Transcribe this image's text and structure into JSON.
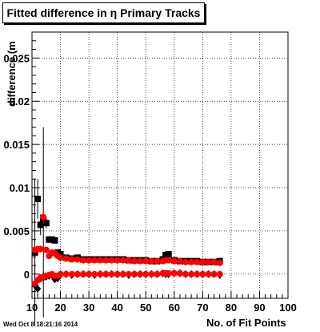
{
  "chart_data": {
    "type": "scatter",
    "title": "Fitted difference in  η Primary Tracks",
    "xlabel": "No. of Fit Points",
    "ylabel": "difference (m",
    "xlim": [
      10,
      100
    ],
    "ylim": [
      -0.0028,
      0.028
    ],
    "xticks": [
      10,
      20,
      30,
      40,
      50,
      60,
      70,
      80,
      90,
      100
    ],
    "yticks": [
      "0",
      "0.005",
      "0.01",
      "0.015",
      "0.02",
      "0.025"
    ],
    "ytick_values": [
      0,
      0.005,
      0.01,
      0.015,
      0.02,
      0.025
    ],
    "grid": true,
    "series": [
      {
        "marker": "square",
        "color": "#000000",
        "x": [
          11,
          12,
          13,
          14,
          15,
          16,
          17,
          18,
          19,
          20,
          22,
          24,
          26,
          28,
          30,
          32,
          34,
          36,
          38,
          40,
          42,
          44,
          46,
          48,
          50,
          52,
          54,
          56,
          57,
          58,
          60,
          62,
          64,
          66,
          68,
          70,
          72,
          74,
          76
        ],
        "y": [
          0.0025,
          0.0087,
          0.0057,
          0.006,
          0.0059,
          0.004,
          0.004,
          0.0039,
          0.0025,
          0.0023,
          0.0019,
          0.0018,
          0.0019,
          0.0017,
          0.0017,
          0.0017,
          0.0017,
          0.0017,
          0.0017,
          0.0017,
          0.0017,
          0.0016,
          0.0016,
          0.0016,
          0.0016,
          0.0015,
          0.0015,
          0.0017,
          0.0022,
          0.0023,
          0.0016,
          0.0015,
          0.0015,
          0.0015,
          0.0015,
          0.0014,
          0.0014,
          0.0014,
          0.0015
        ],
        "err": [
          0.0085,
          0.0023,
          0.0012,
          0.011,
          0.0006,
          0.0003,
          0.0003,
          0.0002,
          0.0002,
          0.0001,
          0,
          0,
          0,
          0,
          0,
          0,
          0,
          0,
          0,
          0,
          0,
          0,
          0,
          0,
          0,
          0,
          0,
          0,
          0,
          0,
          0,
          0,
          0,
          0,
          0,
          0,
          0,
          0,
          0
        ]
      },
      {
        "marker": "circle",
        "color": "#ff0000",
        "x": [
          11,
          12,
          13,
          14,
          15,
          16,
          17,
          18,
          19,
          20,
          22,
          24,
          26,
          28,
          30,
          32,
          34,
          36,
          38,
          40,
          42,
          44,
          46,
          48,
          50,
          52,
          54,
          56,
          57,
          58,
          60,
          62,
          64,
          66,
          68,
          70,
          72,
          74,
          76
        ],
        "y": [
          0.0028,
          0.0029,
          0.0029,
          0.0066,
          0.0028,
          0.0021,
          0.0025,
          0.0024,
          0.0021,
          0.0019,
          0.0018,
          0.0017,
          0.0017,
          0.0016,
          0.0016,
          0.0016,
          0.0016,
          0.0016,
          0.0016,
          0.0016,
          0.0016,
          0.0016,
          0.0015,
          0.0015,
          0.0015,
          0.0015,
          0.0015,
          0.0015,
          0.0016,
          0.0016,
          0.0015,
          0.0015,
          0.0014,
          0.0014,
          0.0014,
          0.0014,
          0.0014,
          0.0014,
          0.0013
        ],
        "err": [
          0,
          0.0003,
          0.0004,
          0.0008,
          0.0003,
          0.0002,
          0.0001,
          0.0001,
          0.0001,
          0,
          0,
          0,
          0,
          0,
          0,
          0,
          0,
          0,
          0,
          0,
          0,
          0,
          0,
          0,
          0,
          0,
          0,
          0,
          0,
          0,
          0,
          0,
          0,
          0,
          0,
          0,
          0,
          0,
          0
        ]
      },
      {
        "marker": "diamond",
        "color": "#000000",
        "x": [
          11,
          12,
          13,
          14,
          15,
          16,
          17,
          18,
          19,
          20,
          22,
          24,
          26,
          28,
          30,
          32,
          34,
          36,
          38,
          40,
          42,
          44,
          46,
          48,
          50,
          52,
          54,
          56,
          57,
          58,
          60,
          62,
          64,
          66,
          68,
          70,
          72,
          74,
          76
        ],
        "y": [
          -0.0013,
          -0.0017,
          -0.0005,
          -0.0004,
          -0.0003,
          -0.0002,
          -0.0001,
          -0.0006,
          -0.0005,
          -0.0001,
          0,
          -0.0001,
          0,
          0,
          0,
          -0.0001,
          0,
          0,
          0,
          0,
          0,
          -0.0001,
          0,
          0,
          0,
          0,
          0,
          0.0001,
          0,
          0,
          0.0001,
          0.0001,
          0,
          0,
          0,
          0,
          0,
          0,
          -0.0001
        ],
        "err": [
          0.0022,
          0.0008,
          0.0004,
          0.0007,
          0.0002,
          0.0001,
          0.0001,
          0,
          0,
          0,
          0,
          0,
          0,
          0,
          0,
          0,
          0,
          0,
          0,
          0,
          0,
          0,
          0,
          0,
          0,
          0,
          0,
          0,
          0,
          0,
          0,
          0,
          0,
          0,
          0,
          0,
          0,
          0,
          0
        ]
      },
      {
        "marker": "circle",
        "color": "#ff0000",
        "x": [
          11,
          12,
          13,
          14,
          15,
          16,
          17,
          18,
          19,
          20,
          22,
          24,
          26,
          28,
          30,
          32,
          34,
          36,
          38,
          40,
          42,
          44,
          46,
          48,
          50,
          52,
          54,
          56,
          57,
          58,
          60,
          62,
          64,
          66,
          68,
          70,
          72,
          74,
          76
        ],
        "y": [
          -0.0011,
          -0.0007,
          -0.0004,
          -0.0003,
          -0.0002,
          -0.0001,
          0,
          -0.0002,
          -0.0002,
          0,
          0,
          0,
          0,
          0,
          0,
          0,
          0,
          0,
          0,
          0,
          0,
          0,
          0,
          0,
          0,
          0,
          0,
          0.0001,
          0.0001,
          0.0001,
          0.0001,
          0.0001,
          0,
          0,
          0,
          0,
          0,
          0,
          0
        ],
        "err": [
          0,
          0.0003,
          0.0002,
          0.0003,
          0.0001,
          0,
          0,
          0,
          0,
          0,
          0,
          0,
          0,
          0,
          0,
          0,
          0,
          0,
          0,
          0,
          0,
          0,
          0,
          0,
          0,
          0,
          0,
          0,
          0,
          0,
          0,
          0,
          0,
          0,
          0,
          0,
          0,
          0,
          0
        ]
      }
    ]
  },
  "footer": {
    "date": "Wed Oct  8 18:21:16 2014"
  }
}
